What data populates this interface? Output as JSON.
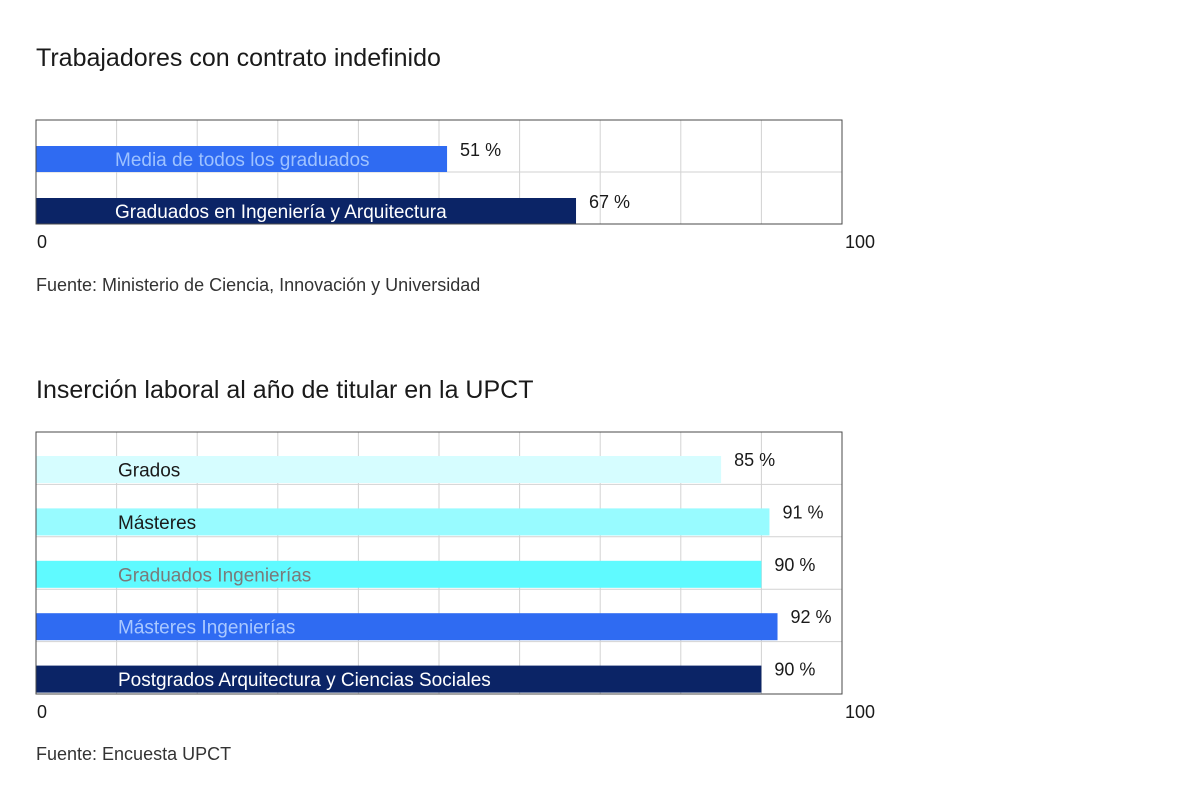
{
  "chart_data": [
    {
      "type": "bar",
      "orientation": "horizontal",
      "title": "Trabajadores con contrato indefinido",
      "categories": [
        "Media de todos los graduados",
        "Graduados en Ingeniería y Arquitectura"
      ],
      "values": [
        51,
        67
      ],
      "value_labels": [
        "51 %",
        "67 %"
      ],
      "bar_colors": [
        "#2f6bf2",
        "#0b2466"
      ],
      "label_colors": [
        "#9ec2ff",
        "#ffffff"
      ],
      "xlim": [
        0,
        100
      ],
      "x_tick_labels": [
        "0",
        "100"
      ],
      "grid": true,
      "source": "Fuente: Ministerio de Ciencia, Innovación y Universidad"
    },
    {
      "type": "bar",
      "orientation": "horizontal",
      "title": "Inserción laboral al año de titular en la UPCT",
      "categories": [
        "Grados",
        "Másteres",
        "Graduados Ingenierías",
        "Másteres Ingenierías",
        "Postgrados Arquitectura y Ciencias Sociales"
      ],
      "values": [
        85,
        91,
        90,
        92,
        90
      ],
      "value_labels": [
        "85 %",
        "91 %",
        "90 %",
        "92 %",
        "90 %"
      ],
      "bar_colors": [
        "#d6fdff",
        "#98fbff",
        "#5ffaff",
        "#2f6bf2",
        "#0b2466"
      ],
      "label_colors": [
        "#1a1a1a",
        "#1a1a1a",
        "#7a7a7a",
        "#a9c8ff",
        "#ffffff"
      ],
      "xlim": [
        0,
        100
      ],
      "x_tick_labels": [
        "0",
        "100"
      ],
      "grid": true,
      "source": "Fuente: Encuesta UPCT"
    }
  ]
}
